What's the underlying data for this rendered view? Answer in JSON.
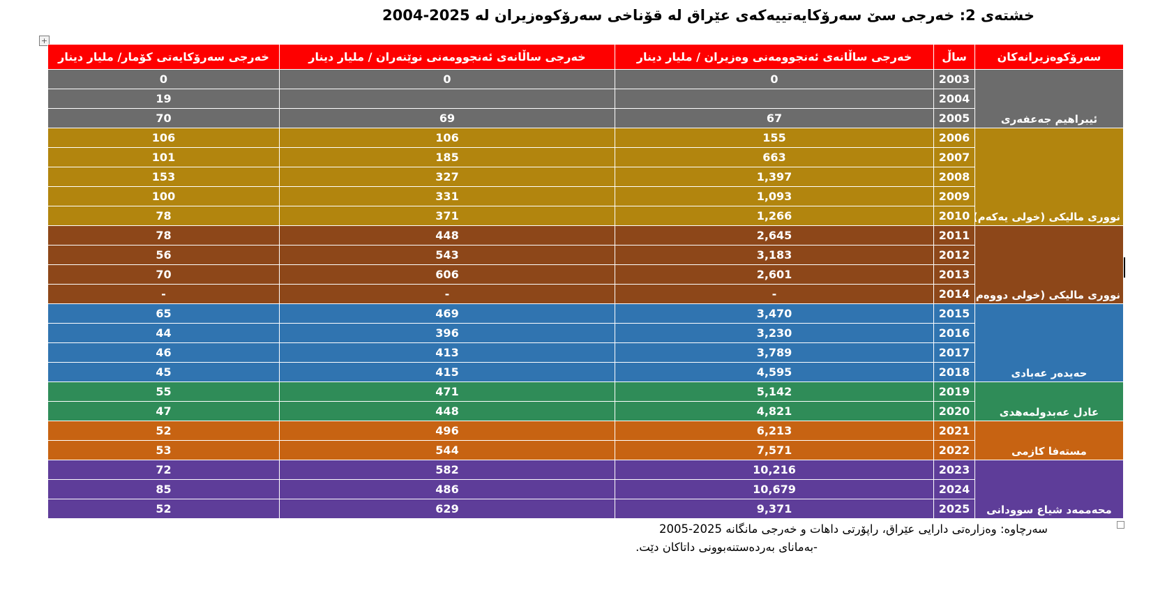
{
  "title": "خشتەی 2: خەرجی سێ سەرۆکایەتییەکەی عێراق لە قۆناخی سەرۆکوەزیران لە 2025-2004",
  "colors": {
    "header_red": "#FE0000",
    "jaafari_gray": "#6C6C6C",
    "maliki1_gold": "#B2850E",
    "maliki2_brown": "#8D4719",
    "abadi_blue": "#3074B0",
    "abdulmahdi_green": "#2F8C58",
    "kadhimi_orange": "#C76312",
    "sudani_purple": "#5E3D99",
    "cell_text": "#FFFFFF"
  },
  "table": {
    "headers": {
      "pm": "سەرۆکوەزیرانەکان",
      "year": "ساڵ",
      "ministers": "خەرجی ساڵانەی ئەنجوومەنی وەزیران / ملیار دینار",
      "parliament": "خەرجی ساڵانەی ئەنجوومەنی نوێنەران / ملیار دینار",
      "presidency": "خەرجی سەرۆکایەتی کۆمار/ ملیار دینار"
    },
    "groups": [
      {
        "pm": "ئیبراهیم جەعفەری",
        "color": "#6C6C6C",
        "rows": [
          {
            "year": "2003",
            "ministers": "0",
            "parliament": "0",
            "presidency": "0"
          },
          {
            "year": "2004",
            "ministers": "",
            "parliament": "",
            "presidency": "19"
          },
          {
            "year": "2005",
            "ministers": "67",
            "parliament": "69",
            "presidency": "70"
          }
        ]
      },
      {
        "pm": "نووری مالیکی (خولی یەکەم)",
        "color": "#B2850E",
        "rows": [
          {
            "year": "2006",
            "ministers": "155",
            "parliament": "106",
            "presidency": "106"
          },
          {
            "year": "2007",
            "ministers": "663",
            "parliament": "185",
            "presidency": "101"
          },
          {
            "year": "2008",
            "ministers": "1,397",
            "parliament": "327",
            "presidency": "153"
          },
          {
            "year": "2009",
            "ministers": "1,093",
            "parliament": "331",
            "presidency": "100"
          },
          {
            "year": "2010",
            "ministers": "1,266",
            "parliament": "371",
            "presidency": "78"
          }
        ]
      },
      {
        "pm": "نووری مالیکی (خولی دووەم)",
        "color": "#8D4719",
        "rows": [
          {
            "year": "2011",
            "ministers": "2,645",
            "parliament": "448",
            "presidency": "78"
          },
          {
            "year": "2012",
            "ministers": "3,183",
            "parliament": "543",
            "presidency": "56"
          },
          {
            "year": "2013",
            "ministers": "2,601",
            "parliament": "606",
            "presidency": "70"
          },
          {
            "year": "2014",
            "ministers": "-",
            "parliament": "-",
            "presidency": "-"
          }
        ]
      },
      {
        "pm": "حەیدەر عەبادی",
        "color": "#3074B0",
        "rows": [
          {
            "year": "2015",
            "ministers": "3,470",
            "parliament": "469",
            "presidency": "65"
          },
          {
            "year": "2016",
            "ministers": "3,230",
            "parliament": "396",
            "presidency": "44"
          },
          {
            "year": "2017",
            "ministers": "3,789",
            "parliament": "413",
            "presidency": "46"
          },
          {
            "year": "2018",
            "ministers": "4,595",
            "parliament": "415",
            "presidency": "45"
          }
        ]
      },
      {
        "pm": "عادل عەبدولمەهدی",
        "color": "#2F8C58",
        "rows": [
          {
            "year": "2019",
            "ministers": "5,142",
            "parliament": "471",
            "presidency": "55"
          },
          {
            "year": "2020",
            "ministers": "4,821",
            "parliament": "448",
            "presidency": "47"
          }
        ]
      },
      {
        "pm": "مستەفا کازمی",
        "color": "#C76312",
        "rows": [
          {
            "year": "2021",
            "ministers": "6,213",
            "parliament": "496",
            "presidency": "52"
          },
          {
            "year": "2022",
            "ministers": "7,571",
            "parliament": "544",
            "presidency": "53"
          }
        ]
      },
      {
        "pm": "محەممەد شیاع سوودانی",
        "color": "#5E3D99",
        "rows": [
          {
            "year": "2023",
            "ministers": "10,216",
            "parliament": "582",
            "presidency": "72"
          },
          {
            "year": "2024",
            "ministers": "10,679",
            "parliament": "486",
            "presidency": "85"
          },
          {
            "year": "2025",
            "ministers": "9,371",
            "parliament": "629",
            "presidency": "52"
          }
        ]
      }
    ]
  },
  "footer": {
    "line1": "سەرچاوە: وەزارەتی دارایی عێراق، راپۆرتی داهات و خەرجی مانگانە 2025-2005",
    "line2": "-بەمانای بەردەستنەبوونی داتاکان دێت."
  },
  "icons": {
    "move_handle": "+",
    "resize_handle": ""
  }
}
